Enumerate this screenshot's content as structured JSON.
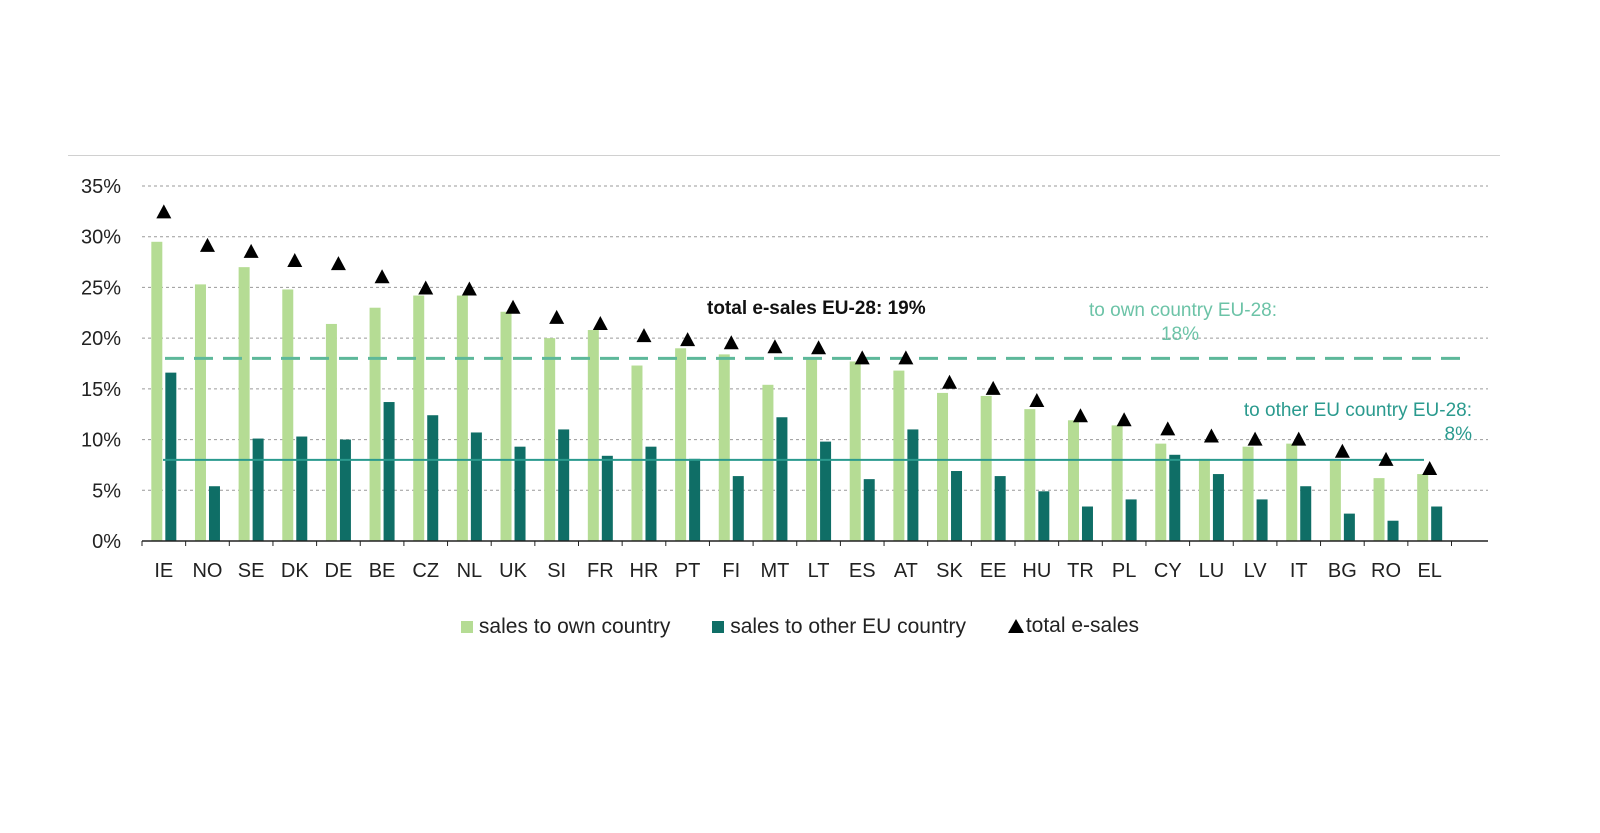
{
  "chart_data": {
    "type": "bar",
    "categories": [
      "IE",
      "NO",
      "SE",
      "DK",
      "DE",
      "BE",
      "CZ",
      "NL",
      "UK",
      "SI",
      "FR",
      "HR",
      "PT",
      "FI",
      "MT",
      "LT",
      "ES",
      "AT",
      "SK",
      "EE",
      "HU",
      "TR",
      "PL",
      "CY",
      "LU",
      "LV",
      "IT",
      "BG",
      "RO",
      "EL"
    ],
    "series": [
      {
        "name": "sales to own country",
        "type": "bar",
        "color": "#b5dc94",
        "values": [
          29.5,
          25.3,
          27.0,
          24.8,
          21.4,
          23.0,
          24.2,
          24.2,
          22.6,
          20.0,
          20.8,
          17.3,
          19.0,
          18.4,
          15.4,
          17.9,
          17.7,
          16.8,
          14.6,
          14.3,
          13.0,
          11.9,
          11.4,
          9.6,
          8.1,
          9.3,
          9.6,
          7.9,
          6.2,
          6.6
        ]
      },
      {
        "name": "sales to other EU country",
        "type": "bar",
        "color": "#0f6e66",
        "values": [
          16.6,
          5.4,
          10.1,
          10.3,
          10.0,
          13.7,
          12.4,
          10.7,
          9.3,
          11.0,
          8.4,
          9.3,
          8.1,
          6.4,
          12.2,
          9.8,
          6.1,
          11.0,
          6.9,
          6.4,
          4.9,
          3.4,
          4.1,
          8.5,
          6.6,
          4.1,
          5.4,
          2.7,
          2.0,
          3.4
        ]
      },
      {
        "name": "total e-sales",
        "type": "marker",
        "color": "#000000",
        "values": [
          32.4,
          29.1,
          28.5,
          27.6,
          27.3,
          26.0,
          24.9,
          24.8,
          23.0,
          22.0,
          21.4,
          20.2,
          19.8,
          19.5,
          19.1,
          19.0,
          18.0,
          18.0,
          15.6,
          15.0,
          13.8,
          12.3,
          11.9,
          11.0,
          10.3,
          10.0,
          10.0,
          8.8,
          8.0,
          7.1
        ]
      }
    ],
    "ylim": [
      0,
      35
    ],
    "yticks": [
      0,
      5,
      10,
      15,
      20,
      25,
      30,
      35
    ],
    "ytick_labels": [
      "0%",
      "5%",
      "10%",
      "15%",
      "20%",
      "25%",
      "30%",
      "35%"
    ],
    "grid": "horizontal dashed",
    "legend_position": "bottom",
    "reference_lines": [
      {
        "name": "to own country EU-28",
        "value": 18,
        "style": "dashed",
        "color": "#5db89a"
      },
      {
        "name": "to other EU country EU-28",
        "value": 8,
        "style": "solid",
        "color": "#2a9a8e"
      }
    ],
    "annotations": {
      "total_label": "total e-sales EU-28:  19%",
      "own_label_line1": "to own country EU-28:",
      "own_label_line2": "18%",
      "other_label_line1": "to other EU country EU-28:",
      "other_label_line2": "8%"
    },
    "legend": [
      {
        "label": "sales to own country",
        "symbol": "square",
        "color": "#b5dc94"
      },
      {
        "label": "sales to other EU country",
        "symbol": "square",
        "color": "#0f6e66"
      },
      {
        "label": "total e-sales",
        "symbol": "triangle",
        "color": "#000000"
      }
    ]
  }
}
